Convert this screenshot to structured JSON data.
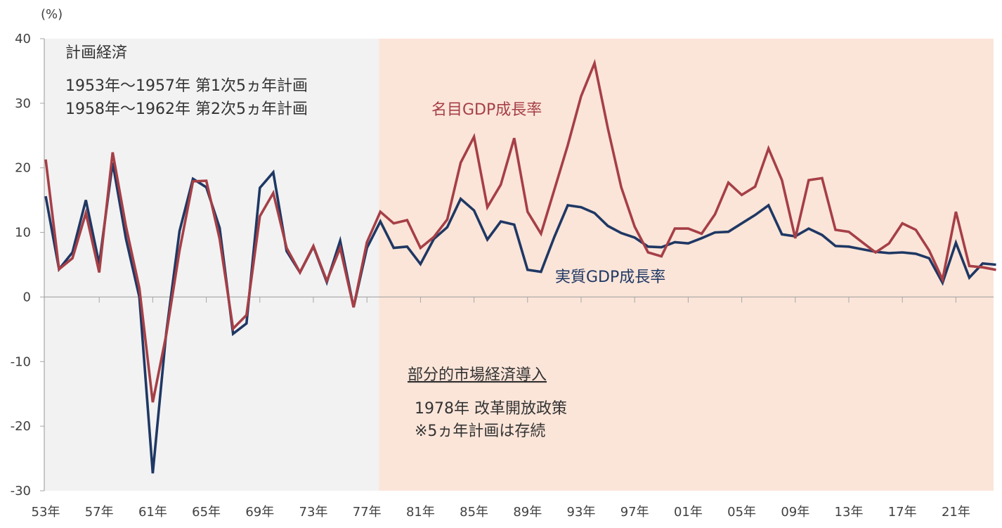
{
  "chart_data": {
    "type": "line",
    "ylabel": "(%)",
    "ylim": [
      -30,
      40
    ],
    "yticks": [
      40,
      30,
      20,
      10,
      0,
      -10,
      -20,
      -30
    ],
    "xlim": [
      1953,
      2024
    ],
    "xtick_years": [
      1953,
      1957,
      1961,
      1965,
      1969,
      1973,
      1977,
      1981,
      1985,
      1989,
      1993,
      1997,
      2001,
      2005,
      2009,
      2013,
      2017,
      2021
    ],
    "xtick_labels": [
      "53年",
      "57年",
      "61年",
      "65年",
      "69年",
      "73年",
      "77年",
      "81年",
      "85年",
      "89年",
      "93年",
      "97年",
      "01年",
      "05年",
      "09年",
      "13年",
      "17年",
      "21年"
    ],
    "regions": [
      {
        "name": "計画経済",
        "from": 1953,
        "to": 1978,
        "color": "#f2f2f2"
      },
      {
        "name": "部分的市場経済導入",
        "from": 1978,
        "to": 2024,
        "color": "#fbe5d9"
      }
    ],
    "x": [
      1953,
      1954,
      1955,
      1956,
      1957,
      1958,
      1959,
      1960,
      1961,
      1962,
      1963,
      1964,
      1965,
      1966,
      1967,
      1968,
      1969,
      1970,
      1971,
      1972,
      1973,
      1974,
      1975,
      1976,
      1977,
      1978,
      1979,
      1980,
      1981,
      1982,
      1983,
      1984,
      1985,
      1986,
      1987,
      1988,
      1989,
      1990,
      1991,
      1992,
      1993,
      1994,
      1995,
      1996,
      1997,
      1998,
      1999,
      2000,
      2001,
      2002,
      2003,
      2004,
      2005,
      2006,
      2007,
      2008,
      2009,
      2010,
      2011,
      2012,
      2013,
      2014,
      2015,
      2016,
      2017,
      2018,
      2019,
      2020,
      2021,
      2022,
      2023,
      2024
    ],
    "series": [
      {
        "name": "実質GDP成長率",
        "color": "#1f3864",
        "values": [
          15.6,
          4.3,
          6.9,
          15.0,
          5.1,
          20.8,
          9.0,
          0.0,
          -27.3,
          -5.6,
          10.2,
          18.3,
          17.0,
          10.7,
          -5.7,
          -4.1,
          16.9,
          19.3,
          7.1,
          3.8,
          7.8,
          2.3,
          8.7,
          -1.6,
          7.6,
          11.7,
          7.6,
          7.8,
          5.1,
          9.0,
          10.8,
          15.2,
          13.4,
          8.9,
          11.7,
          11.2,
          4.2,
          3.9,
          9.3,
          14.2,
          13.9,
          13.0,
          11.0,
          9.9,
          9.2,
          7.8,
          7.7,
          8.5,
          8.3,
          9.1,
          10.0,
          10.1,
          11.4,
          12.7,
          14.2,
          9.7,
          9.4,
          10.6,
          9.6,
          7.9,
          7.8,
          7.4,
          7.0,
          6.8,
          6.9,
          6.7,
          6.0,
          2.2,
          8.4,
          3.0,
          5.2,
          5.0
        ]
      },
      {
        "name": "名目GDP成長率",
        "color": "#a63f46",
        "values": [
          21.3,
          4.3,
          6.0,
          13.0,
          3.8,
          22.4,
          10.9,
          1.4,
          -16.3,
          -5.9,
          7.2,
          17.9,
          18.0,
          9.0,
          -4.9,
          -2.8,
          12.5,
          16.1,
          7.6,
          3.8,
          7.9,
          2.5,
          7.6,
          -1.6,
          8.5,
          13.2,
          11.4,
          11.9,
          7.6,
          9.3,
          12.0,
          20.8,
          24.8,
          13.9,
          17.4,
          24.6,
          13.2,
          9.8,
          16.6,
          23.5,
          31.1,
          36.2,
          26.1,
          17.0,
          10.9,
          6.9,
          6.3,
          10.6,
          10.6,
          9.8,
          12.8,
          17.7,
          15.8,
          17.1,
          23.0,
          18.1,
          9.1,
          18.1,
          18.4,
          10.4,
          10.1,
          8.5,
          6.9,
          8.3,
          11.4,
          10.4,
          7.2,
          2.7,
          13.2,
          4.8,
          4.6,
          4.2
        ]
      }
    ],
    "annotations": {
      "planned_title": "計画経済",
      "planned_line1": "1953年～1957年 第1次5ヵ年計画",
      "planned_line2": "1958年～1962年 第2次5ヵ年計画",
      "nominal_label": "名目GDP成長率",
      "real_label": "実質GDP成長率",
      "market_title": "部分的市場経済導入",
      "market_line1": "1978年 改革開放政策",
      "market_line2": "※5ヵ年計画は存続"
    }
  }
}
